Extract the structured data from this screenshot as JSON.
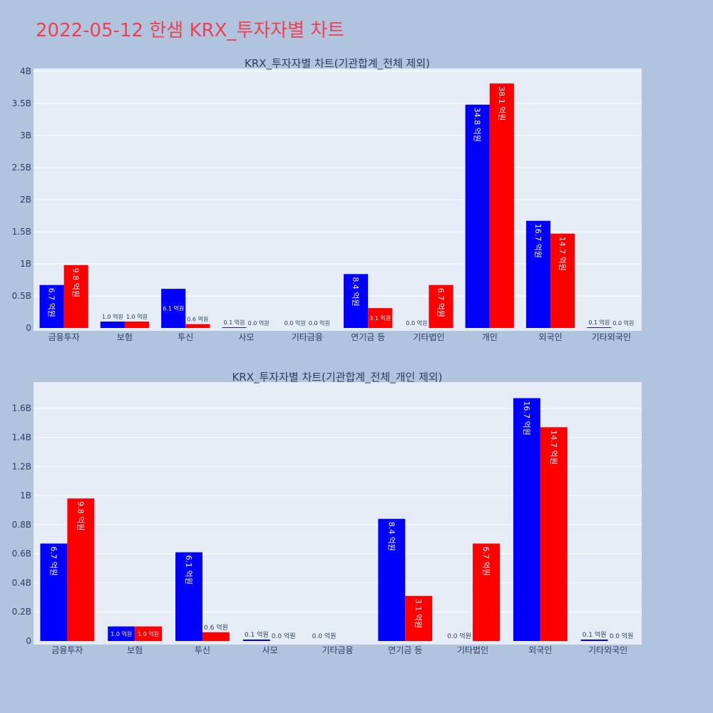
{
  "page": {
    "title": "2022-05-12 한샘 KRX_투자자별 차트"
  },
  "colors": {
    "buy": "#0000ff",
    "sell": "#ff0000",
    "plot_bg": "#e5ecf6",
    "page_bg": "#b0c4de",
    "title": "#ef3f54"
  },
  "chart_data": [
    {
      "type": "bar",
      "title": "KRX_투자자별 차트(기관합계_전체 제외)",
      "categories": [
        "금융투자",
        "보험",
        "투신",
        "사모",
        "기타금융",
        "연기금 등",
        "기타법인",
        "개인",
        "외국인",
        "기타외국인"
      ],
      "series": [
        {
          "values": [
            0.67,
            0.1,
            0.61,
            0.01,
            0.0,
            0.84,
            0.0,
            3.48,
            1.67,
            0.01
          ],
          "labels": [
            "6.7 억원",
            "1.0 억원",
            "6.1 억원",
            "0.1 억원",
            "0.0 억원",
            "8.4 억원",
            "0.0 억원",
            "34.8 억원",
            "16.7 억원",
            "0.1 억원"
          ]
        },
        {
          "values": [
            0.98,
            0.1,
            0.06,
            0.0,
            0.0,
            0.31,
            0.67,
            3.81,
            1.47,
            0.0
          ],
          "labels": [
            "9.8 억원",
            "1.0 억원",
            "0.6 억원",
            "0.0 억원",
            "0.0 억원",
            "3.1 억원",
            "6.7 억원",
            "38.1 억원",
            "14.7 억원",
            "0.0 억원"
          ]
        }
      ],
      "y_tick_labels": [
        "0",
        "0.5B",
        "1B",
        "1.5B",
        "2B",
        "2.5B",
        "3B",
        "3.5B",
        "4B"
      ],
      "ylim": [
        0,
        4
      ],
      "grid": true,
      "legend": "none"
    },
    {
      "type": "bar",
      "title": "KRX_투자자별 차트(기관합계_전체_개인 제외)",
      "categories": [
        "금융투자",
        "보험",
        "투신",
        "사모",
        "기타금융",
        "연기금 등",
        "기타법인",
        "외국인",
        "기타외국인"
      ],
      "series": [
        {
          "values": [
            0.67,
            0.1,
            0.61,
            0.01,
            0.0,
            0.84,
            0.0,
            1.67,
            0.01
          ],
          "labels": [
            "6.7 억원",
            "1.0 억원",
            "6.1 억원",
            "0.1 억원",
            "0.0 억원",
            "8.4 억원",
            "0.0 억원",
            "16.7 억원",
            "0.1 억원"
          ]
        },
        {
          "values": [
            0.98,
            0.1,
            0.06,
            0.0,
            0.0,
            0.31,
            0.67,
            1.47,
            0.0
          ],
          "labels": [
            "9.8 억원",
            "1.0 억원",
            "0.6 억원",
            "0.0 억원",
            "",
            "3.1 억원",
            "6.7 억원",
            "14.7 억원",
            "0.0 억원"
          ]
        }
      ],
      "y_tick_labels": [
        "0",
        "0.2B",
        "0.4B",
        "0.6B",
        "0.8B",
        "1B",
        "1.2B",
        "1.4B",
        "1.6B"
      ],
      "ylim": [
        0,
        1.78
      ],
      "grid": true,
      "legend": "none"
    }
  ]
}
